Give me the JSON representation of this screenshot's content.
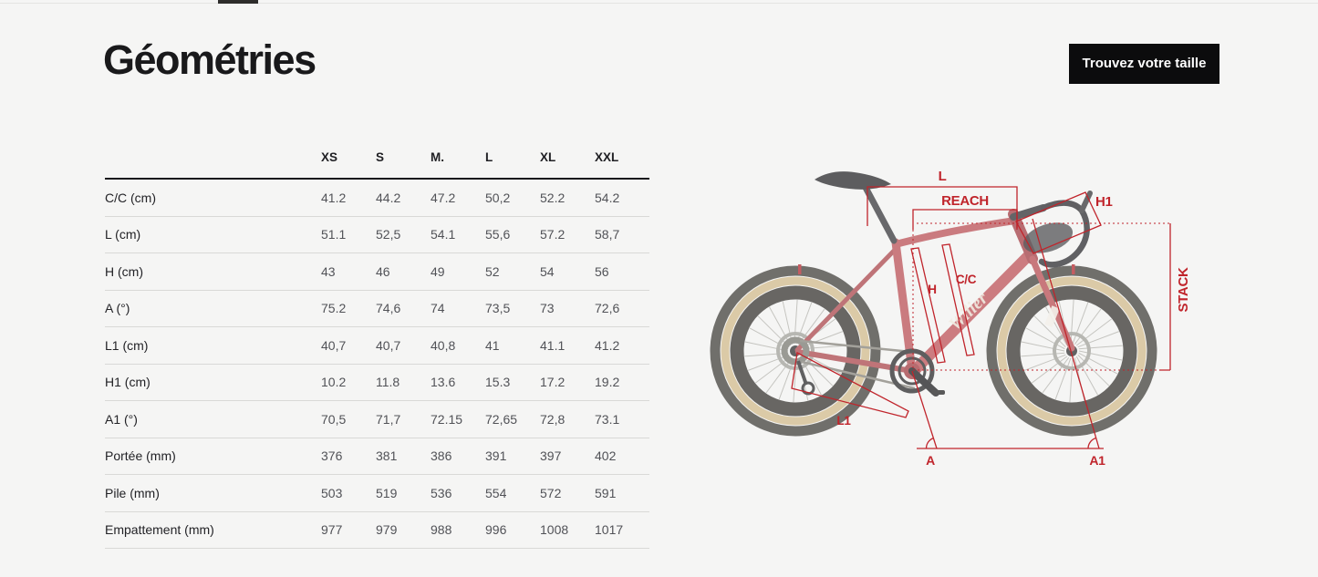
{
  "page": {
    "background": "#f5f5f4"
  },
  "header": {
    "title": "Géométries",
    "cta_label": "Trouvez votre taille"
  },
  "geometry_table": {
    "size_columns": [
      "XS",
      "S",
      "M.",
      "L",
      "XL",
      "XXL"
    ],
    "rows": [
      {
        "label": "C/C (cm)",
        "values": [
          "41.2",
          "44.2",
          "47.2",
          "50,2",
          "52.2",
          "54.2"
        ]
      },
      {
        "label": "L (cm)",
        "values": [
          "51.1",
          "52,5",
          "54.1",
          "55,6",
          "57.2",
          "58,7"
        ]
      },
      {
        "label": "H (cm)",
        "values": [
          "43",
          "46",
          "49",
          "52",
          "54",
          "56"
        ]
      },
      {
        "label": "A (°)",
        "values": [
          "75.2",
          "74,6",
          "74",
          "73,5",
          "73",
          "72,6"
        ]
      },
      {
        "label": "L1 (cm)",
        "values": [
          "40,7",
          "40,7",
          "40,8",
          "41",
          "41.1",
          "41.2"
        ]
      },
      {
        "label": "H1 (cm)",
        "values": [
          "10.2",
          "11.8",
          "13.6",
          "15.3",
          "17.2",
          "19.2"
        ]
      },
      {
        "label": "A1 (°)",
        "values": [
          "70,5",
          "71,7",
          "72.15",
          "72,65",
          "72,8",
          "73.1"
        ]
      },
      {
        "label": "Portée (mm)",
        "values": [
          "376",
          "381",
          "386",
          "391",
          "397",
          "402"
        ]
      },
      {
        "label": "Pile (mm)",
        "values": [
          "503",
          "519",
          "536",
          "554",
          "572",
          "591"
        ]
      },
      {
        "label": "Empattement (mm)",
        "values": [
          "977",
          "979",
          "988",
          "996",
          "1008",
          "1017"
        ]
      }
    ]
  },
  "diagram": {
    "brand_logo": "Wilier",
    "annotation_color": "#c0242b",
    "labels": {
      "l": "L",
      "reach": "REACH",
      "h1": "H1",
      "cc": "C/C",
      "h": "H",
      "stack": "STACK",
      "l1": "L1",
      "a": "A",
      "a1": "A1"
    }
  }
}
